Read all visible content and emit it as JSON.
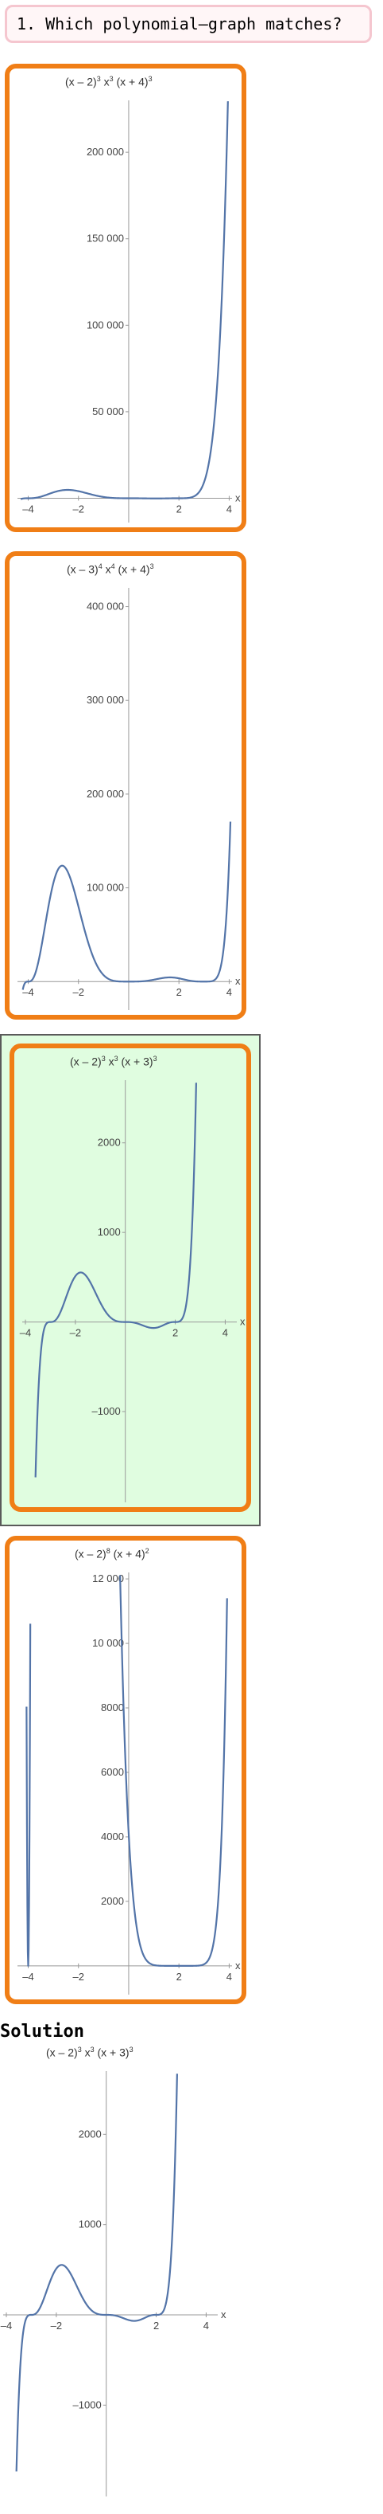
{
  "question": {
    "text": "1. Which polynomial–graph matches?"
  },
  "options": [
    {
      "title_parts": [
        "(x – 2)",
        "3",
        " x",
        "3",
        " (x + 4)",
        "3"
      ]
    },
    {
      "title_parts": [
        "(x – 3)",
        "4",
        " x",
        "4",
        " (x + 4)",
        "3"
      ]
    },
    {
      "title_parts": [
        "(x – 2)",
        "3",
        " x",
        "3",
        " (x + 3)",
        "3"
      ]
    },
    {
      "title_parts": [
        "(x – 2)",
        "8",
        " (x + 4)",
        "2"
      ]
    }
  ],
  "solution": {
    "heading": "Solution",
    "title_parts": [
      "(x – 2)",
      "3",
      " x",
      "3",
      " (x + 3)",
      "3"
    ]
  },
  "chart_data": [
    {
      "type": "line",
      "title": "(x – 2)^3 x^3 (x + 4)^3",
      "xlabel": "x",
      "ylabel": "",
      "xlim": [
        -4.3,
        4.05
      ],
      "ylim": [
        -3000,
        230000
      ],
      "x_ticks": [
        -4,
        -2,
        2,
        4
      ],
      "x_tick_labels": [
        "–4",
        "–2",
        "2",
        "4"
      ],
      "y_ticks": [
        50000,
        100000,
        150000,
        200000
      ],
      "y_tick_labels": [
        "50 000",
        "100 000",
        "150 000",
        "200 000"
      ],
      "roots": [
        -4,
        0,
        2
      ],
      "powers": [
        3,
        3,
        3
      ]
    },
    {
      "type": "line",
      "title": "(x – 3)^4 x^4 (x + 4)^3",
      "xlabel": "x",
      "ylabel": "",
      "xlim": [
        -4.3,
        4.05
      ],
      "ylim": [
        -10000,
        420000
      ],
      "x_ticks": [
        -4,
        -2,
        2,
        4
      ],
      "x_tick_labels": [
        "–4",
        "–2",
        "2",
        "4"
      ],
      "y_ticks": [
        100000,
        200000,
        300000,
        400000
      ],
      "y_tick_labels": [
        "100 000",
        "200 000",
        "300 000",
        "400 000"
      ],
      "roots": [
        -4,
        0,
        3
      ],
      "powers": [
        3,
        4,
        4
      ]
    },
    {
      "type": "line",
      "title": "(x – 2)^3 x^3 (x + 3)^3",
      "xlabel": "x",
      "ylabel": "",
      "xlim": [
        -4.0,
        4.4
      ],
      "ylim": [
        -1800,
        2700
      ],
      "x_ticks": [
        -4,
        -2,
        2,
        4
      ],
      "x_tick_labels": [
        "–4",
        "–2",
        "2",
        "4"
      ],
      "y_ticks": [
        -1000,
        1000,
        2000
      ],
      "y_tick_labels": [
        "–1000",
        "1000",
        "2000"
      ],
      "roots": [
        -3,
        0,
        2
      ],
      "powers": [
        3,
        3,
        3
      ]
    },
    {
      "type": "line",
      "title": "(x – 2)^8 (x + 4)^2",
      "xlabel": "x",
      "ylabel": "",
      "xlim": [
        -4.3,
        4.05
      ],
      "ylim": [
        -300,
        12200
      ],
      "x_ticks": [
        -4,
        -2,
        2,
        4
      ],
      "x_tick_labels": [
        "–4",
        "–2",
        "2",
        "4"
      ],
      "y_ticks": [
        2000,
        4000,
        6000,
        8000,
        10000,
        12000
      ],
      "y_tick_labels": [
        "2000",
        "4000",
        "6000",
        "8000",
        "10 000",
        "12 000"
      ],
      "roots": [
        -4,
        2
      ],
      "powers": [
        2,
        8
      ]
    },
    {
      "type": "line",
      "title": "(x – 2)^3 x^3 (x + 3)^3",
      "xlabel": "x",
      "ylabel": "",
      "xlim": [
        -4.0,
        4.4
      ],
      "ylim": [
        -1800,
        2700
      ],
      "x_ticks": [
        -4,
        -2,
        2,
        4
      ],
      "x_tick_labels": [
        "–4",
        "–2",
        "2",
        "4"
      ],
      "y_ticks": [
        -1000,
        1000,
        2000
      ],
      "y_tick_labels": [
        "–1000",
        "1000",
        "2000"
      ],
      "roots": [
        -3,
        0,
        2
      ],
      "powers": [
        3,
        3,
        3
      ]
    }
  ]
}
